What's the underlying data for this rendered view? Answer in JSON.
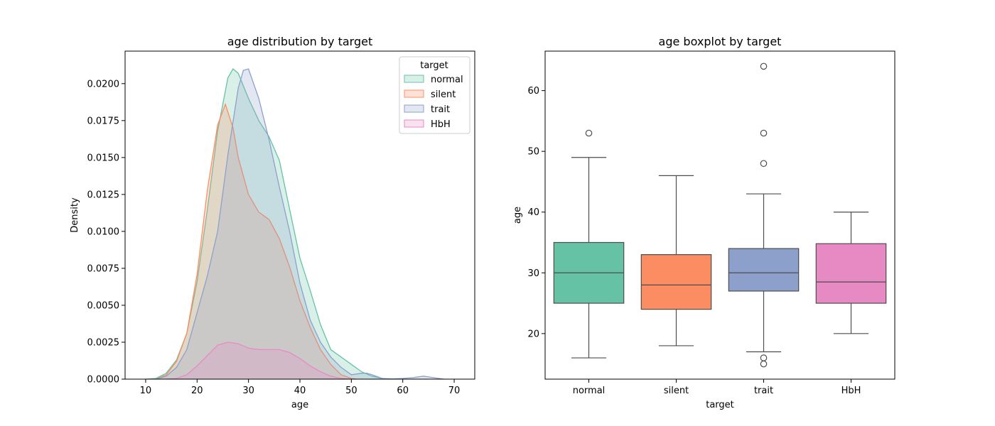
{
  "colors": {
    "normal": "#66c2a5",
    "silent": "#fc8d62",
    "trait": "#8da0cb",
    "HbH": "#e78ac3",
    "box_line": "#4d4d4d"
  },
  "chart_data": [
    {
      "type": "area",
      "title": "age distribution by target",
      "xlabel": "age",
      "ylabel": "Density",
      "xlim": [
        6,
        74
      ],
      "ylim": [
        0,
        0.0222
      ],
      "xticks": [
        "10",
        "20",
        "30",
        "40",
        "50",
        "60",
        "70"
      ],
      "yticks": [
        "0.0000",
        "0.0025",
        "0.0050",
        "0.0075",
        "0.0100",
        "0.0125",
        "0.0150",
        "0.0175",
        "0.0200"
      ],
      "legend": {
        "title": "target",
        "placement": "top-right",
        "entries": [
          "normal",
          "silent",
          "trait",
          "HbH"
        ]
      },
      "series": [
        {
          "name": "normal",
          "x": [
            10,
            12,
            14,
            16,
            18,
            20,
            22,
            24,
            26,
            27,
            28,
            30,
            32,
            34,
            36,
            38,
            40,
            42,
            44,
            46,
            48,
            50,
            52,
            54,
            56,
            57
          ],
          "y": [
            0,
            5e-05,
            0.0004,
            0.0013,
            0.0031,
            0.0066,
            0.0115,
            0.0168,
            0.0204,
            0.021,
            0.0207,
            0.019,
            0.0175,
            0.0164,
            0.0148,
            0.0115,
            0.0082,
            0.006,
            0.0037,
            0.002,
            0.0015,
            0.001,
            0.0005,
            0.0002,
            5e-05,
            0
          ]
        },
        {
          "name": "silent",
          "x": [
            12,
            14,
            16,
            18,
            20,
            22,
            24,
            25.5,
            27,
            28,
            30,
            32,
            34,
            36,
            38,
            40,
            42,
            44,
            46,
            48,
            50,
            51
          ],
          "y": [
            0,
            0.0003,
            0.0012,
            0.0031,
            0.0071,
            0.0128,
            0.0172,
            0.0186,
            0.017,
            0.015,
            0.0125,
            0.0113,
            0.0108,
            0.0095,
            0.0076,
            0.0053,
            0.0035,
            0.002,
            0.001,
            0.0003,
            5e-05,
            0
          ]
        },
        {
          "name": "trait",
          "x": [
            12,
            14,
            16,
            18,
            20,
            22,
            24,
            26,
            28,
            29,
            30,
            32,
            34,
            36,
            38,
            40,
            42,
            44,
            46,
            48,
            50,
            52,
            53,
            54,
            56,
            58,
            60,
            62,
            64,
            66,
            68
          ],
          "y": [
            0,
            0.0002,
            0.0008,
            0.002,
            0.0045,
            0.007,
            0.01,
            0.0152,
            0.0197,
            0.0209,
            0.021,
            0.019,
            0.0162,
            0.013,
            0.01,
            0.0065,
            0.004,
            0.0025,
            0.0015,
            0.0008,
            0.0003,
            0.0004,
            0.0004,
            0.0003,
            5e-05,
            2e-05,
            5e-05,
            0.0001,
            0.0002,
            0.0001,
            0
          ]
        },
        {
          "name": "HbH",
          "x": [
            14,
            16,
            18,
            20,
            22,
            24,
            26,
            28,
            30,
            32,
            34,
            36,
            38,
            40,
            42,
            44,
            46,
            48,
            50
          ],
          "y": [
            0,
            5e-05,
            0.0003,
            0.0009,
            0.0016,
            0.0023,
            0.0025,
            0.0024,
            0.0021,
            0.002,
            0.002,
            0.002,
            0.0018,
            0.0014,
            0.0009,
            0.0005,
            0.0002,
            5e-05,
            0
          ]
        }
      ]
    },
    {
      "type": "box",
      "title": "age boxplot by target",
      "xlabel": "target",
      "ylabel": "age",
      "ylim": [
        12.5,
        66.5
      ],
      "yticks": [
        20,
        30,
        40,
        50,
        60
      ],
      "categories": [
        "normal",
        "silent",
        "trait",
        "HbH"
      ],
      "series": [
        {
          "name": "normal",
          "min": 16,
          "q1": 25,
          "median": 30,
          "q3": 35,
          "max": 49,
          "outliers": [
            53
          ]
        },
        {
          "name": "silent",
          "min": 18,
          "q1": 24,
          "median": 28,
          "q3": 33,
          "max": 46,
          "outliers": []
        },
        {
          "name": "trait",
          "min": 17,
          "q1": 27,
          "median": 30,
          "q3": 34,
          "max": 43,
          "outliers": [
            64,
            53,
            48,
            16,
            15
          ]
        },
        {
          "name": "HbH",
          "min": 20,
          "q1": 25,
          "median": 28.5,
          "q3": 34.8,
          "max": 40,
          "outliers": []
        }
      ]
    }
  ]
}
